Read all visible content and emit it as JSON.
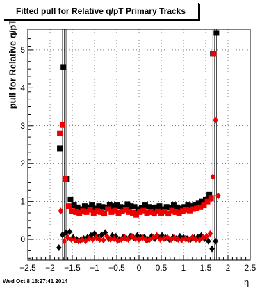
{
  "chart_data": {
    "type": "scatter",
    "title": "Fitted pull for Relative q/pT  Primary Tracks",
    "xlabel": "η",
    "ylabel": "pull for Relative q/pT",
    "xlim": [
      -2.5,
      2.5
    ],
    "ylim": [
      -0.55,
      5.55
    ],
    "x_ticks": [
      "−2.5",
      "−2",
      "−1.5",
      "−1",
      "−0.5",
      "0",
      "0.5",
      "1",
      "1.5",
      "2",
      "2.5"
    ],
    "x_tick_values": [
      -2.5,
      -2,
      -1.5,
      -1,
      -0.5,
      0,
      0.5,
      1,
      1.5,
      2,
      2.5
    ],
    "y_ticks": [
      "0",
      "1",
      "2",
      "3",
      "4",
      "5"
    ],
    "y_tick_values": [
      0,
      1,
      2,
      3,
      4,
      5
    ],
    "grid": true,
    "colors": {
      "black": "#000000",
      "red": "#ee0000"
    },
    "series": [
      {
        "marker": "square",
        "color": "#000000",
        "x": [
          -1.78,
          -1.7,
          -1.62,
          -1.54,
          -1.46,
          -1.38,
          -1.3,
          -1.22,
          -1.14,
          -1.06,
          -0.98,
          -0.9,
          -0.82,
          -0.74,
          -0.66,
          -0.58,
          -0.5,
          -0.42,
          -0.34,
          -0.26,
          -0.18,
          -0.1,
          -0.02,
          0.06,
          0.14,
          0.22,
          0.3,
          0.38,
          0.46,
          0.54,
          0.62,
          0.7,
          0.78,
          0.86,
          0.94,
          1.02,
          1.1,
          1.18,
          1.26,
          1.34,
          1.42,
          1.5,
          1.58,
          1.66,
          1.74
        ],
        "y": [
          2.4,
          4.55,
          1.6,
          1.05,
          0.9,
          0.85,
          0.8,
          0.88,
          0.85,
          0.9,
          0.82,
          0.88,
          0.86,
          0.84,
          0.92,
          0.88,
          0.9,
          0.86,
          0.85,
          0.93,
          0.88,
          0.86,
          0.8,
          0.84,
          0.9,
          0.86,
          0.83,
          0.85,
          0.88,
          0.8,
          0.86,
          0.84,
          0.9,
          0.85,
          0.82,
          0.86,
          0.9,
          0.88,
          0.92,
          0.95,
          1.0,
          1.05,
          1.18,
          4.9,
          5.45
        ]
      },
      {
        "marker": "square",
        "color": "#ee0000",
        "x": [
          -1.78,
          -1.72,
          -1.66,
          -1.58,
          -1.5,
          -1.42,
          -1.34,
          -1.26,
          -1.18,
          -1.1,
          -1.02,
          -0.94,
          -0.86,
          -0.78,
          -0.7,
          -0.62,
          -0.54,
          -0.46,
          -0.38,
          -0.3,
          -0.22,
          -0.14,
          -0.06,
          0.02,
          0.1,
          0.18,
          0.26,
          0.34,
          0.42,
          0.5,
          0.58,
          0.66,
          0.74,
          0.82,
          0.9,
          0.98,
          1.06,
          1.14,
          1.22,
          1.3,
          1.38,
          1.46,
          1.54,
          1.62,
          1.68
        ],
        "y": [
          2.8,
          3.02,
          1.6,
          0.88,
          0.75,
          0.72,
          0.7,
          0.75,
          0.72,
          0.78,
          0.7,
          0.75,
          0.72,
          0.68,
          0.8,
          0.72,
          0.76,
          0.7,
          0.74,
          0.78,
          0.72,
          0.7,
          0.65,
          0.72,
          0.76,
          0.7,
          0.72,
          0.68,
          0.74,
          0.7,
          0.73,
          0.68,
          0.76,
          0.72,
          0.7,
          0.75,
          0.78,
          0.76,
          0.8,
          0.82,
          0.85,
          0.9,
          1.0,
          1.08,
          4.9
        ]
      },
      {
        "marker": "diamond",
        "color": "#000000",
        "x": [
          -1.8,
          -1.72,
          -1.64,
          -1.56,
          -1.48,
          -1.4,
          -1.32,
          -1.24,
          -1.16,
          -1.08,
          -1.0,
          -0.92,
          -0.84,
          -0.76,
          -0.68,
          -0.6,
          -0.52,
          -0.44,
          -0.36,
          -0.28,
          -0.2,
          -0.12,
          -0.04,
          0.04,
          0.12,
          0.2,
          0.28,
          0.36,
          0.44,
          0.52,
          0.6,
          0.68,
          0.76,
          0.84,
          0.92,
          1.0,
          1.08,
          1.16,
          1.24,
          1.32,
          1.4,
          1.48,
          1.56,
          1.64,
          1.72
        ],
        "y": [
          -0.22,
          0.12,
          0.18,
          0.2,
          0.05,
          0.0,
          -0.03,
          0.02,
          0.05,
          0.1,
          0.15,
          0.05,
          0.12,
          0.18,
          0.02,
          0.1,
          0.08,
          0.0,
          0.05,
          0.02,
          0.08,
          0.04,
          0.1,
          0.05,
          0.06,
          0.0,
          0.08,
          0.02,
          0.06,
          0.1,
          0.04,
          0.0,
          0.05,
          0.02,
          0.08,
          0.05,
          0.02,
          0.0,
          0.04,
          0.06,
          0.1,
          0.02,
          -0.05,
          -0.25,
          -0.05
        ]
      },
      {
        "marker": "diamond",
        "color": "#ee0000",
        "x": [
          -1.76,
          -1.68,
          -1.6,
          -1.52,
          -1.44,
          -1.36,
          -1.28,
          -1.2,
          -1.12,
          -1.04,
          -0.96,
          -0.88,
          -0.8,
          -0.72,
          -0.64,
          -0.56,
          -0.48,
          -0.4,
          -0.32,
          -0.24,
          -0.16,
          -0.08,
          0.0,
          0.08,
          0.16,
          0.24,
          0.32,
          0.4,
          0.48,
          0.56,
          0.64,
          0.72,
          0.8,
          0.88,
          0.96,
          1.04,
          1.12,
          1.2,
          1.28,
          1.36,
          1.44,
          1.52,
          1.6,
          1.66,
          1.72,
          1.78
        ],
        "y": [
          0.75,
          -0.05,
          0.05,
          0.0,
          -0.02,
          -0.05,
          0.0,
          -0.04,
          0.02,
          0.0,
          0.05,
          0.0,
          -0.02,
          0.08,
          0.0,
          0.02,
          -0.03,
          0.0,
          0.05,
          0.0,
          0.08,
          0.02,
          0.0,
          0.04,
          -0.02,
          0.0,
          0.05,
          0.1,
          0.0,
          0.02,
          0.05,
          0.0,
          0.04,
          0.0,
          -0.02,
          0.02,
          0.0,
          0.05,
          0.0,
          -0.02,
          0.05,
          0.08,
          0.15,
          1.65,
          3.15,
          1.15
        ]
      }
    ]
  },
  "footer": {
    "timestamp": "Wed Oct  8 18:27:41 2014"
  }
}
